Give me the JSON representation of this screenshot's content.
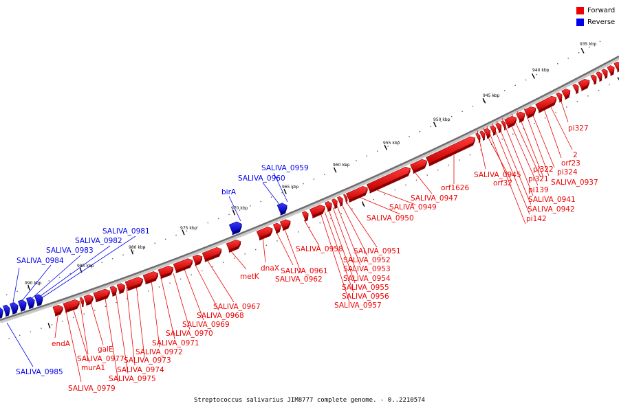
{
  "legend": [
    {
      "label": "Forward",
      "color": "#ee0000"
    },
    {
      "label": "Reverse",
      "color": "#0000ee"
    }
  ],
  "caption": "Streptococcus salivarius JIM8777 complete genome. - 0..2210574",
  "colors": {
    "forward": "#ee0000",
    "forward_dark": "#990000",
    "reverse": "#0000ee",
    "reverse_dark": "#000099",
    "backbone": "#777777"
  },
  "scale_labels": [
    "935 kbp",
    "940 kbp",
    "945 kbp",
    "950 kbp",
    "955 kbp",
    "960 kbp",
    "965 kbp",
    "970 kbp",
    "975 kbp",
    "980 kbp",
    "985 kbp",
    "990 kbp"
  ],
  "gene_labels": [
    {
      "text": "SALIVA_0959",
      "strand": "reverse"
    },
    {
      "text": "SALIVA_0960",
      "strand": "reverse"
    },
    {
      "text": "birA",
      "strand": "reverse"
    },
    {
      "text": "SALIVA_0981",
      "strand": "reverse"
    },
    {
      "text": "SALIVA_0982",
      "strand": "reverse"
    },
    {
      "text": "SALIVA_0983",
      "strand": "reverse"
    },
    {
      "text": "SALIVA_0984",
      "strand": "reverse"
    },
    {
      "text": "SALIVA_0985",
      "strand": "reverse"
    },
    {
      "text": "pi327",
      "strand": "forward"
    },
    {
      "text": "2",
      "strand": "forward"
    },
    {
      "text": "orf23",
      "strand": "forward"
    },
    {
      "text": "pi322",
      "strand": "forward"
    },
    {
      "text": "pi324",
      "strand": "forward"
    },
    {
      "text": "SALIVA_0945",
      "strand": "forward"
    },
    {
      "text": "pi321",
      "strand": "forward"
    },
    {
      "text": "SALIVA_0937",
      "strand": "forward"
    },
    {
      "text": "orf32",
      "strand": "forward"
    },
    {
      "text": "pi139",
      "strand": "forward"
    },
    {
      "text": "orf1626",
      "strand": "forward"
    },
    {
      "text": "SALIVA_0941",
      "strand": "forward"
    },
    {
      "text": "SALIVA_0947",
      "strand": "forward"
    },
    {
      "text": "SALIVA_0942",
      "strand": "forward"
    },
    {
      "text": "SALIVA_0949",
      "strand": "forward"
    },
    {
      "text": "pi142",
      "strand": "forward"
    },
    {
      "text": "SALIVA_0950",
      "strand": "forward"
    },
    {
      "text": "SALIVA_0958",
      "strand": "forward"
    },
    {
      "text": "SALIVA_0951",
      "strand": "forward"
    },
    {
      "text": "SALIVA_0952",
      "strand": "forward"
    },
    {
      "text": "SALIVA_0953",
      "strand": "forward"
    },
    {
      "text": "SALIVA_0954",
      "strand": "forward"
    },
    {
      "text": "SALIVA_0955",
      "strand": "forward"
    },
    {
      "text": "SALIVA_0956",
      "strand": "forward"
    },
    {
      "text": "SALIVA_0957",
      "strand": "forward"
    },
    {
      "text": "dnaX",
      "strand": "forward"
    },
    {
      "text": "SALIVA_0961",
      "strand": "forward"
    },
    {
      "text": "SALIVA_0962",
      "strand": "forward"
    },
    {
      "text": "metK",
      "strand": "forward"
    },
    {
      "text": "SALIVA_0967",
      "strand": "forward"
    },
    {
      "text": "SALIVA_0968",
      "strand": "forward"
    },
    {
      "text": "SALIVA_0969",
      "strand": "forward"
    },
    {
      "text": "SALIVA_0970",
      "strand": "forward"
    },
    {
      "text": "SALIVA_0971",
      "strand": "forward"
    },
    {
      "text": "SALIVA_0972",
      "strand": "forward"
    },
    {
      "text": "SALIVA_0973",
      "strand": "forward"
    },
    {
      "text": "SALIVA_0974",
      "strand": "forward"
    },
    {
      "text": "SALIVA_0975",
      "strand": "forward"
    },
    {
      "text": "endA",
      "strand": "forward"
    },
    {
      "text": "galE",
      "strand": "forward"
    },
    {
      "text": "SALIVA_0977",
      "strand": "forward"
    },
    {
      "text": "murA1",
      "strand": "forward"
    },
    {
      "text": "SALIVA_0979",
      "strand": "forward"
    }
  ]
}
